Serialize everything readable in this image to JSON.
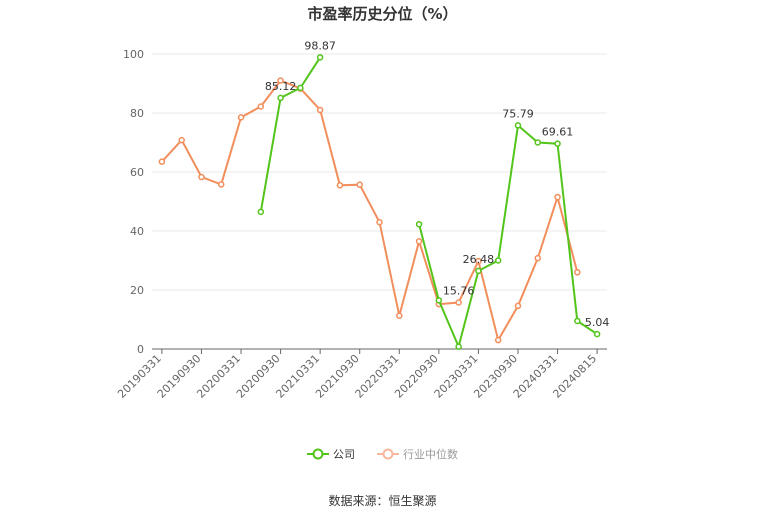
{
  "chart_data": {
    "type": "line",
    "title": "市盈率历史分位（%）",
    "xlabel": "",
    "ylabel": "",
    "ylim": [
      0,
      100
    ],
    "yticks": [
      0,
      20,
      40,
      60,
      80,
      100
    ],
    "grid": true,
    "legend_position": "bottom",
    "x": [
      "20190331",
      "20190630",
      "20190930",
      "20191231",
      "20200331",
      "20200630",
      "20200930",
      "20201231",
      "20210331",
      "20210630",
      "20210930",
      "20211231",
      "20220331",
      "20220630",
      "20220930",
      "20221231",
      "20230331",
      "20230630",
      "20230930",
      "20231231",
      "20240331",
      "20240630",
      "20240815"
    ],
    "x_tick_labels": [
      "20190331",
      "20190930",
      "20200331",
      "20200930",
      "20210331",
      "20210930",
      "20220331",
      "20220930",
      "20230331",
      "20230930",
      "20240331",
      "20240815"
    ],
    "series": [
      {
        "name": "公司",
        "color": "#52c41a",
        "values": [
          null,
          null,
          null,
          null,
          null,
          46.5,
          85.12,
          88.5,
          98.87,
          null,
          null,
          null,
          null,
          42.3,
          16.5,
          0.8,
          26.48,
          30.0,
          75.79,
          70.0,
          69.61,
          9.5,
          5.04
        ],
        "data_labels": {
          "6": "85.12",
          "8": "98.87",
          "16": "26.48",
          "18": "75.79",
          "20": "69.61",
          "22": "5.04"
        }
      },
      {
        "name": "行业中位数",
        "color": "#f28e5c",
        "values": [
          63.5,
          70.8,
          58.3,
          55.8,
          78.5,
          82.2,
          91.0,
          88.3,
          81.0,
          55.5,
          55.7,
          43.0,
          11.3,
          36.5,
          15.2,
          15.76,
          29.8,
          3.0,
          14.6,
          30.8,
          51.5,
          26.0,
          null
        ],
        "data_labels": {
          "15": "15.76"
        }
      }
    ]
  },
  "legend": {
    "items": [
      {
        "label": "公司",
        "color": "#52c41a"
      },
      {
        "label": "行业中位数",
        "color": "#f6b89a"
      }
    ]
  },
  "source_text": "数据来源：恒生聚源"
}
